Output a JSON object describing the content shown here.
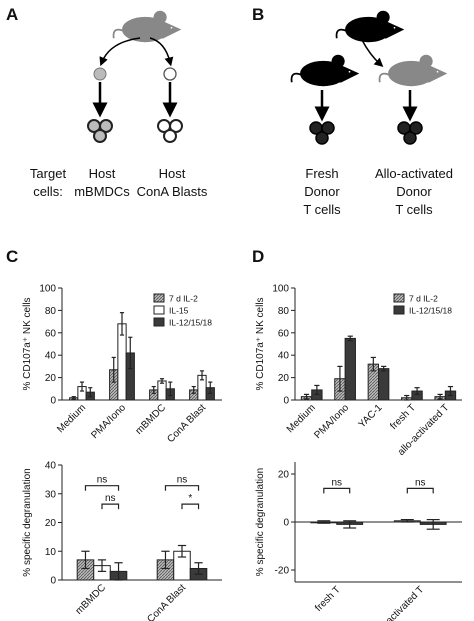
{
  "panel_labels": [
    "A",
    "B",
    "C",
    "D"
  ],
  "diagram_a": {
    "row_label": [
      "Target",
      "cells:"
    ],
    "targets": [
      [
        "Host",
        "mBMDCs"
      ],
      [
        "Host",
        "ConA Blasts"
      ]
    ]
  },
  "diagram_b": {
    "targets": [
      [
        "Fresh",
        "Donor",
        "T cells"
      ],
      [
        "Allo-activated",
        "Donor",
        "T cells"
      ]
    ]
  },
  "chart_data": [
    {
      "type": "bar",
      "ylabel": "% CD107a⁺ NK cells",
      "categories": [
        "Medium",
        "PMA/Iono",
        "mBMDC",
        "ConA Blast"
      ],
      "series": [
        {
          "name": "7 d IL-2",
          "color": "#9a9a9a",
          "pattern": "hatch",
          "values": [
            2,
            27,
            9,
            9
          ],
          "errors": [
            1,
            11,
            3,
            3
          ]
        },
        {
          "name": "IL-15",
          "color": "#ffffff",
          "values": [
            12,
            68,
            17,
            22
          ],
          "errors": [
            4,
            10,
            2,
            4
          ]
        },
        {
          "name": "IL-12/15/18",
          "color": "#3a3a3a",
          "values": [
            7,
            42,
            10,
            11
          ],
          "errors": [
            4,
            14,
            6,
            5
          ]
        }
      ],
      "ylim": [
        0,
        100
      ],
      "yticks": [
        0,
        20,
        40,
        60,
        80,
        100
      ],
      "legend": "upper right"
    },
    {
      "type": "bar",
      "ylabel": "% specific degranulation",
      "categories": [
        "mBMDC",
        "ConA Blast"
      ],
      "series": [
        {
          "name": "7 d IL-2",
          "color": "#9a9a9a",
          "pattern": "hatch",
          "values": [
            7,
            7
          ],
          "errors": [
            3,
            3
          ]
        },
        {
          "name": "IL-15",
          "color": "#ffffff",
          "values": [
            5,
            10
          ],
          "errors": [
            2,
            2
          ]
        },
        {
          "name": "IL-12/15/18",
          "color": "#3a3a3a",
          "values": [
            3,
            4
          ],
          "errors": [
            3,
            2
          ]
        }
      ],
      "ylim": [
        0,
        40
      ],
      "yticks": [
        0,
        10,
        20,
        30,
        40
      ],
      "annotations": [
        "ns",
        "ns",
        "ns",
        "*"
      ]
    },
    {
      "type": "bar",
      "ylabel": "% CD107a⁺ NK cells",
      "categories": [
        "Medium",
        "PMA/Iono",
        "YAC-1",
        "fresh T",
        "allo-activated T"
      ],
      "series": [
        {
          "name": "7 d IL-2",
          "color": "#9a9a9a",
          "pattern": "hatch",
          "values": [
            3,
            19,
            32,
            2,
            3
          ],
          "errors": [
            2,
            11,
            6,
            2,
            2
          ]
        },
        {
          "name": "IL-12/15/18",
          "color": "#3a3a3a",
          "values": [
            9,
            55,
            28,
            8,
            8
          ],
          "errors": [
            4,
            2,
            2,
            3,
            4
          ]
        }
      ],
      "ylim": [
        0,
        100
      ],
      "yticks": [
        0,
        20,
        40,
        60,
        80,
        100
      ],
      "legend": "upper right"
    },
    {
      "type": "bar",
      "ylabel": "% specific degranulation",
      "categories": [
        "fresh T",
        "allo-activated T"
      ],
      "series": [
        {
          "name": "7 d IL-2",
          "color": "#9a9a9a",
          "pattern": "hatch",
          "values": [
            0,
            0.5
          ],
          "errors": [
            0.5,
            0.5
          ]
        },
        {
          "name": "IL-12/15/18",
          "color": "#3a3a3a",
          "values": [
            -1,
            -1
          ],
          "errors": [
            1.5,
            2
          ]
        }
      ],
      "ylim": [
        -25,
        25
      ],
      "yticks": [
        -20,
        0,
        20
      ],
      "annotations": [
        "ns",
        "ns"
      ]
    }
  ]
}
